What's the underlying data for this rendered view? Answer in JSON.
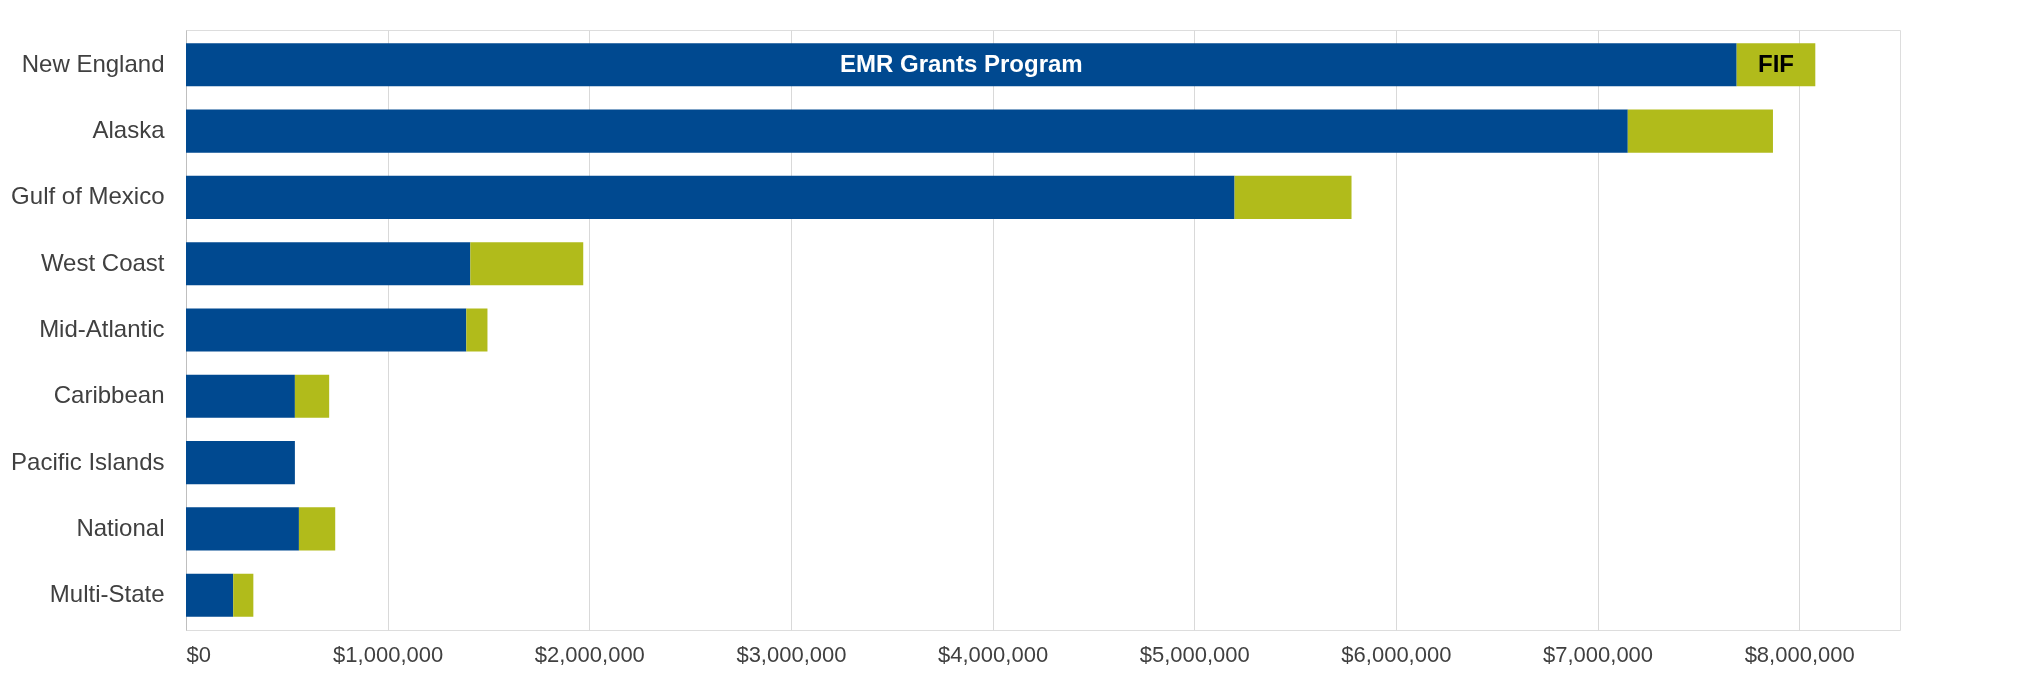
{
  "chart_data": {
    "type": "bar",
    "orientation": "horizontal",
    "stacked": true,
    "categories": [
      "New England",
      "Alaska",
      "Gulf of Mexico",
      "West Coast",
      "Mid-Atlantic",
      "Caribbean",
      "Pacific Islands",
      "National",
      "Multi-State"
    ],
    "series": [
      {
        "name": "EMR Grants Program",
        "color": "#004990",
        "values": [
          7690000,
          7150000,
          5200000,
          1410000,
          1390000,
          540000,
          540000,
          560000,
          234000
        ]
      },
      {
        "name": "FIF",
        "color": "#b1bb1b",
        "values": [
          390000,
          720000,
          580000,
          560000,
          105000,
          170000,
          0,
          180000,
          100000
        ]
      }
    ],
    "xlim": [
      0,
      8500000
    ],
    "xticks": [
      {
        "value": 0,
        "label": "$0"
      },
      {
        "value": 1000000,
        "label": "$1,000,000"
      },
      {
        "value": 2000000,
        "label": "$2,000,000"
      },
      {
        "value": 3000000,
        "label": "$3,000,000"
      },
      {
        "value": 4000000,
        "label": "$4,000,000"
      },
      {
        "value": 5000000,
        "label": "$5,000,000"
      },
      {
        "value": 6000000,
        "label": "$6,000,000"
      },
      {
        "value": 7000000,
        "label": "$7,000,000"
      },
      {
        "value": 8000000,
        "label": "$8,000,000"
      }
    ],
    "grid": "x",
    "legend": false
  }
}
